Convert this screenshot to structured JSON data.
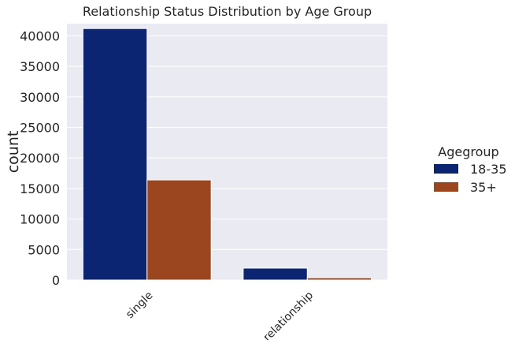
{
  "chart_data": {
    "type": "bar",
    "title": "Relationship Status Distribution by Age Group",
    "xlabel": "",
    "ylabel": "count",
    "categories": [
      "single",
      "relationship"
    ],
    "series": [
      {
        "name": "18-35",
        "color": "#0c2573",
        "values": [
          41200,
          1950
        ]
      },
      {
        "name": "35+",
        "color": "#9c4620",
        "values": [
          16400,
          380
        ]
      }
    ],
    "ylim": [
      0,
      42000
    ],
    "yticks": [
      0,
      5000,
      10000,
      15000,
      20000,
      25000,
      30000,
      35000,
      40000
    ],
    "legend": {
      "title": "Agegroup",
      "placement": "right"
    },
    "grid": true,
    "plot_background": "#eaeaf2"
  }
}
